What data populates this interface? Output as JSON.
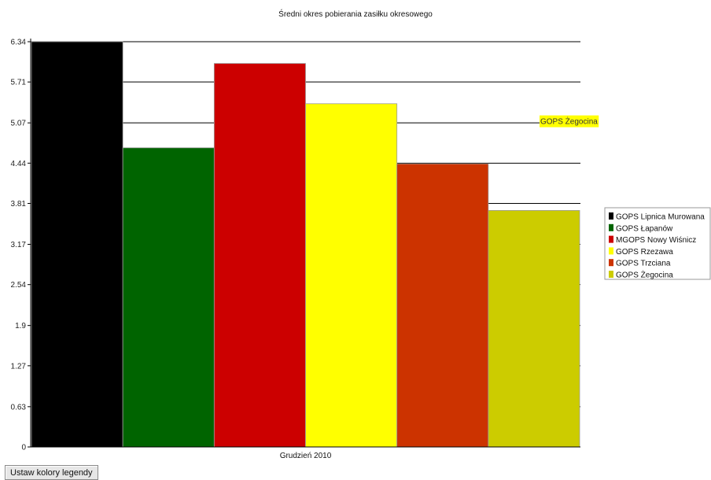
{
  "chart_data": {
    "type": "bar",
    "title": "Średni okres pobierania zasiłku okresowego",
    "categories": [
      "Grudzień 2010"
    ],
    "yticks": [
      "0",
      "0.63",
      "1.27",
      "1.9",
      "2.54",
      "3.17",
      "3.81",
      "4.44",
      "5.07",
      "5.71",
      "6.34"
    ],
    "ylim": [
      0,
      6.34
    ],
    "grid": "horizontal",
    "legend_position": "right",
    "series": [
      {
        "name": "GOPS Lipnica Murowana",
        "values": [
          6.34
        ],
        "color": "#000000"
      },
      {
        "name": "GOPS Łapanów",
        "values": [
          4.68
        ],
        "color": "#006400"
      },
      {
        "name": "MGOPS Nowy Wiśnicz",
        "values": [
          6.0
        ],
        "color": "#cc0000"
      },
      {
        "name": "GOPS Rzezawa",
        "values": [
          5.37
        ],
        "color": "#ffff00"
      },
      {
        "name": "GOPS Trzciana",
        "values": [
          4.43
        ],
        "color": "#cc3300"
      },
      {
        "name": "GOPS Żegocina",
        "values": [
          3.7
        ],
        "color": "#cccc00"
      }
    ],
    "annotation": {
      "text": "GOPS Żegocina",
      "y": 5.07,
      "background": "#ffff00"
    }
  },
  "button": {
    "label": "Ustaw kolory legendy"
  }
}
